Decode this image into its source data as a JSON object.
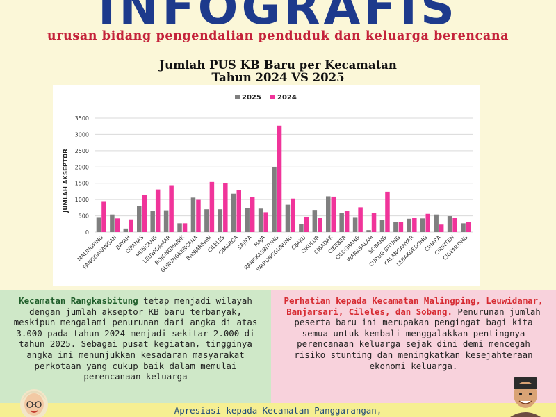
{
  "header": {
    "title": "INFOGRAFIS",
    "subtitle": "urusan bidang pengendalian penduduk dan keluarga berencana"
  },
  "chart_title": {
    "line1": "Jumlah PUS KB Baru per Kecamatan",
    "line2": "Tahun 2024 VS 2025"
  },
  "chart_data": {
    "type": "bar",
    "title": "Jumlah PUS KB Baru per Kecamatan Tahun 2024 VS 2025",
    "xlabel": "",
    "ylabel": "JUMLAH AKSEPTOR",
    "ylim": [
      0,
      3500
    ],
    "yticks": [
      0,
      500,
      1000,
      1500,
      2000,
      2500,
      3000,
      3500
    ],
    "grid": true,
    "legend_position": "top-center",
    "categories": [
      "MALINGPING",
      "PANGGARANGAN",
      "BAYAH",
      "CIPANAS",
      "MUNCANG",
      "LEUWIDAMAR",
      "BOJONGMANIK",
      "GUNUNGKENCANA",
      "BANJARSARI",
      "CILELES",
      "CIMARGA",
      "SAJIRA",
      "MAJA",
      "RANGKASBITUNG",
      "WARUNGGUNUNG",
      "CIJAKU",
      "CIKULUR",
      "CIBADAK",
      "CIBEBER",
      "CILOGRANG",
      "WANASALAM",
      "SOBANG",
      "CURUG BITUNG",
      "KALANGANYAR",
      "LEBAKGEDONG",
      "CIHARA",
      "CIRINTEN",
      "CIGEMLONG"
    ],
    "series": [
      {
        "name": "2025",
        "color": "#7f7f7f",
        "values": [
          460,
          540,
          110,
          800,
          640,
          670,
          270,
          1060,
          700,
          700,
          1180,
          740,
          720,
          2000,
          840,
          240,
          680,
          1100,
          590,
          460,
          60,
          380,
          320,
          410,
          420,
          540,
          490,
          270
        ]
      },
      {
        "name": "2024",
        "color": "#f0349a",
        "values": [
          950,
          420,
          390,
          1150,
          1310,
          1440,
          270,
          990,
          1540,
          1510,
          1290,
          1070,
          610,
          3270,
          1030,
          470,
          440,
          1090,
          640,
          760,
          590,
          1240,
          300,
          430,
          560,
          230,
          430,
          320
        ]
      }
    ]
  },
  "panels": {
    "left": {
      "highlight": "Kecamatan Rangkasbitung",
      "body": " tetap menjadi wilayah dengan jumlah akseptor KB baru terbanyak, meskipun mengalami penurunan dari angka di atas 3.000 pada tahun 2024 menjadi sekitar 2.000 di tahun 2025. Sebagai pusat kegiatan, tingginya angka ini menunjukkan kesadaran masyarakat perkotaan yang cukup baik dalam memulai perencanaan keluarga"
    },
    "right": {
      "highlight": "Perhatian kepada Kecamatan Malingping, Leuwidamar, Banjarsari, Cileles, dan Sobang.",
      "body": " Penurunan jumlah peserta baru ini merupakan pengingat bagi kita semua untuk kembali menggalakkan pentingnya perencanaan keluarga sejak dini demi mencegah risiko stunting dan meningkatkan kesejahteraan ekonomi keluarga."
    }
  },
  "footer": {
    "text": "Apresiasi kepada Kecamatan Panggarangan,"
  }
}
